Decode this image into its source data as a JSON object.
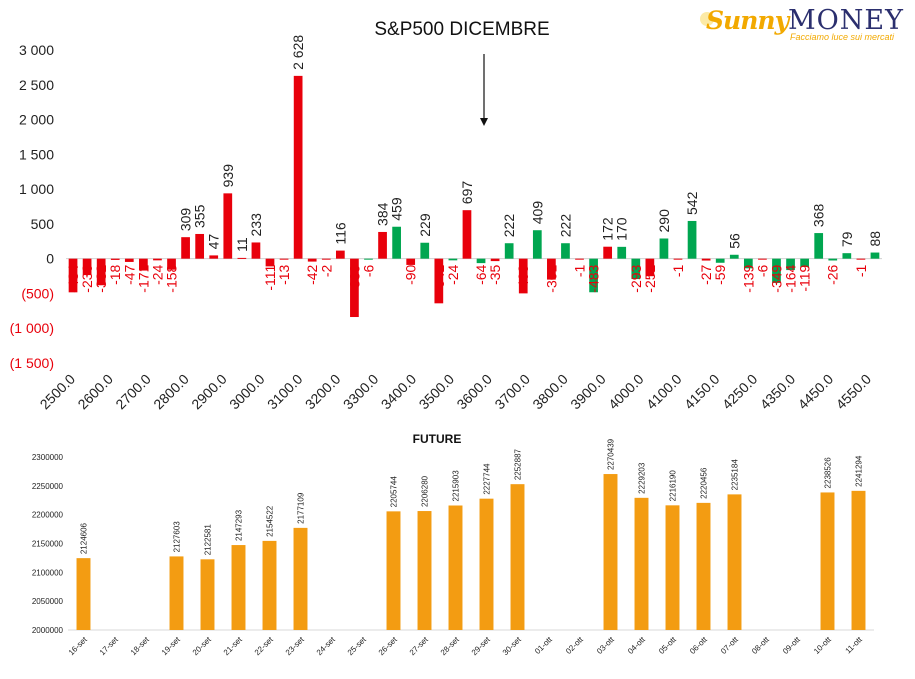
{
  "logo": {
    "sunny": "Sunny",
    "money": "MONEY",
    "tagline": "Facciamo luce sui mercati"
  },
  "colors": {
    "positive_primary": "#e8000b",
    "positive_secondary": "#00a650",
    "negative_label": "#e8000b",
    "future_bar": "#f39c12"
  },
  "chart_data": [
    {
      "type": "bar",
      "title": "S&P500 DICEMBRE",
      "annotation": "arrow pointing down near 3600.0",
      "ylim": [
        -1500,
        3000
      ],
      "y_ticks": [
        "3 000",
        "2 500",
        "2 000",
        "1 500",
        "1 000",
        "500",
        "0",
        "(500)",
        "(1 000)",
        "(1 500)"
      ],
      "y_tick_values": [
        3000,
        2500,
        2000,
        1500,
        1000,
        500,
        0,
        -500,
        -1000,
        -1500
      ],
      "x_tick_labels": [
        "2500.0",
        "2600.0",
        "2700.0",
        "2800.0",
        "2900.0",
        "3000.0",
        "3100.0",
        "3200.0",
        "3300.0",
        "3400.0",
        "3500.0",
        "3600.0",
        "3700.0",
        "3800.0",
        "3900.0",
        "4000.0",
        "4100.0",
        "4150.0",
        "4250.0",
        "4350.0",
        "4450.0",
        "4550.0"
      ],
      "bars": [
        {
          "label": "-484",
          "value": -484,
          "series": "red"
        },
        {
          "label": "-236",
          "value": -236,
          "series": "red"
        },
        {
          "label": "-382",
          "value": -382,
          "series": "red"
        },
        {
          "label": "-18",
          "value": -18,
          "series": "red"
        },
        {
          "label": "-47",
          "value": -47,
          "series": "red"
        },
        {
          "label": "-171",
          "value": -171,
          "series": "red"
        },
        {
          "label": "-24",
          "value": -24,
          "series": "red"
        },
        {
          "label": "-158",
          "value": -158,
          "series": "red"
        },
        {
          "label": "309",
          "value": 309,
          "series": "red"
        },
        {
          "label": "355",
          "value": 355,
          "series": "red"
        },
        {
          "label": "47",
          "value": 47,
          "series": "red"
        },
        {
          "label": "939",
          "value": 939,
          "series": "red"
        },
        {
          "label": "11",
          "value": 11,
          "series": "red"
        },
        {
          "label": "233",
          "value": 233,
          "series": "red"
        },
        {
          "label": "-111",
          "value": -111,
          "series": "red"
        },
        {
          "label": "-13",
          "value": -13,
          "series": "red"
        },
        {
          "label": "2 628",
          "value": 2628,
          "series": "red"
        },
        {
          "label": "-42",
          "value": -42,
          "series": "red"
        },
        {
          "label": "-2",
          "value": -2,
          "series": "red"
        },
        {
          "label": "116",
          "value": 116,
          "series": "red"
        },
        {
          "label": "-839",
          "value": -839,
          "series": "red"
        },
        {
          "label": "-6",
          "value": -6,
          "series": "green"
        },
        {
          "label": "384",
          "value": 384,
          "series": "red"
        },
        {
          "label": "459",
          "value": 459,
          "series": "green"
        },
        {
          "label": "-90",
          "value": -90,
          "series": "red"
        },
        {
          "label": "229",
          "value": 229,
          "series": "green"
        },
        {
          "label": "-642",
          "value": -642,
          "series": "red"
        },
        {
          "label": "-24",
          "value": -24,
          "series": "green"
        },
        {
          "label": "697",
          "value": 697,
          "series": "red"
        },
        {
          "label": "-64",
          "value": -64,
          "series": "green"
        },
        {
          "label": "-35",
          "value": -35,
          "series": "red"
        },
        {
          "label": "222",
          "value": 222,
          "series": "green"
        },
        {
          "label": "-499",
          "value": -499,
          "series": "red"
        },
        {
          "label": "409",
          "value": 409,
          "series": "green"
        },
        {
          "label": "-301",
          "value": -301,
          "series": "red"
        },
        {
          "label": "222",
          "value": 222,
          "series": "green"
        },
        {
          "label": "-1",
          "value": -1,
          "series": "red"
        },
        {
          "label": "-483",
          "value": -483,
          "series": "green"
        },
        {
          "label": "172",
          "value": 172,
          "series": "red"
        },
        {
          "label": "170",
          "value": 170,
          "series": "green"
        },
        {
          "label": "-293",
          "value": -293,
          "series": "green"
        },
        {
          "label": "-252",
          "value": -252,
          "series": "red"
        },
        {
          "label": "290",
          "value": 290,
          "series": "green"
        },
        {
          "label": "-1",
          "value": -1,
          "series": "red"
        },
        {
          "label": "542",
          "value": 542,
          "series": "green"
        },
        {
          "label": "-27",
          "value": -27,
          "series": "red"
        },
        {
          "label": "-59",
          "value": -59,
          "series": "green"
        },
        {
          "label": "56",
          "value": 56,
          "series": "green"
        },
        {
          "label": "-139",
          "value": -139,
          "series": "green"
        },
        {
          "label": "-6",
          "value": -6,
          "series": "red"
        },
        {
          "label": "-349",
          "value": -349,
          "series": "green"
        },
        {
          "label": "-164",
          "value": -164,
          "series": "green"
        },
        {
          "label": "-119",
          "value": -119,
          "series": "green"
        },
        {
          "label": "368",
          "value": 368,
          "series": "green"
        },
        {
          "label": "-26",
          "value": -26,
          "series": "green"
        },
        {
          "label": "79",
          "value": 79,
          "series": "green"
        },
        {
          "label": "-1",
          "value": -1,
          "series": "red"
        },
        {
          "label": "88",
          "value": 88,
          "series": "green"
        }
      ]
    },
    {
      "type": "bar",
      "title": "FUTURE",
      "ylim": [
        2000000,
        2300000
      ],
      "y_ticks": [
        "2300000",
        "2250000",
        "2200000",
        "2150000",
        "2100000",
        "2050000",
        "2000000"
      ],
      "y_tick_values": [
        2300000,
        2250000,
        2200000,
        2150000,
        2100000,
        2050000,
        2000000
      ],
      "categories": [
        "16-set",
        "17-set",
        "18-set",
        "19-set",
        "20-set",
        "21-set",
        "22-set",
        "23-set",
        "24-set",
        "25-set",
        "26-set",
        "27-set",
        "28-set",
        "29-set",
        "30-set",
        "01-ott",
        "02-ott",
        "03-ott",
        "04-ott",
        "05-ott",
        "06-ott",
        "07-ott",
        "08-ott",
        "09-ott",
        "10-ott",
        "11-ott"
      ],
      "values": [
        2124606,
        null,
        null,
        2127603,
        2122581,
        2147293,
        2154522,
        2177109,
        null,
        null,
        2205744,
        2206280,
        2215903,
        2227744,
        2252887,
        null,
        null,
        2270439,
        2229203,
        2216190,
        2220456,
        2235184,
        null,
        null,
        2238526,
        2241294
      ]
    }
  ]
}
